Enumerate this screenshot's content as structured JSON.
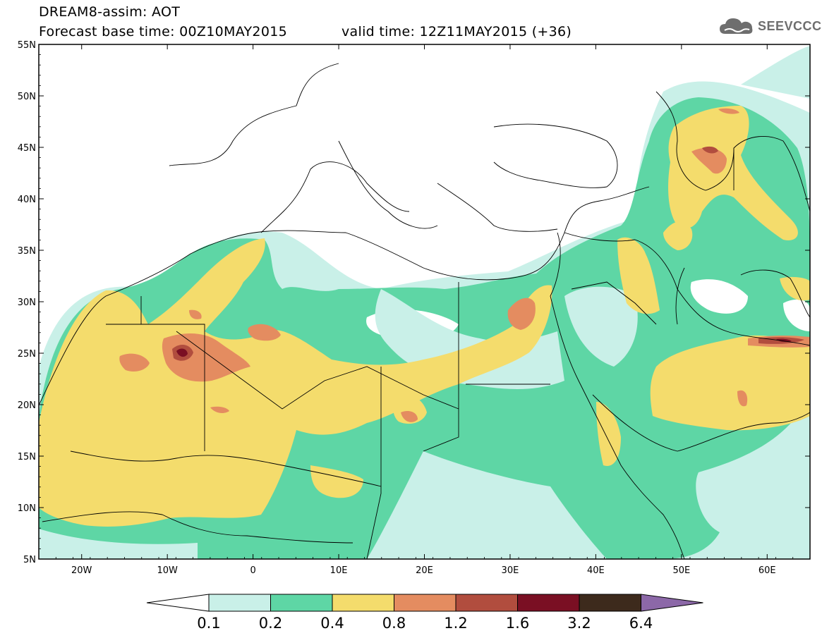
{
  "header": {
    "model_title": "DREAM8-assim: AOT",
    "base_time": "Forecast base time: 00Z10MAY2015",
    "valid_time": "valid time: 12Z11MAY2015 (+36)",
    "logo_text": "SEEVCCC"
  },
  "map": {
    "lon_range": [
      -25,
      65
    ],
    "lat_range": [
      5,
      55
    ],
    "lat_ticks": [
      "55N",
      "50N",
      "45N",
      "40N",
      "35N",
      "30N",
      "25N",
      "20N",
      "15N",
      "10N",
      "5N"
    ],
    "lon_ticks": [
      "20W",
      "10W",
      "0",
      "10E",
      "20E",
      "30E",
      "40E",
      "50E",
      "60E"
    ]
  },
  "colorbar": {
    "labels": [
      "0.1",
      "0.2",
      "0.4",
      "0.8",
      "1.2",
      "1.6",
      "3.2",
      "6.4"
    ],
    "colors": [
      "#ffffff",
      "#c9f0e8",
      "#5ed6a5",
      "#f4dc6c",
      "#e48c60",
      "#b14d3e",
      "#7a0f23",
      "#3d2a1c",
      "#8c68a8"
    ]
  }
}
